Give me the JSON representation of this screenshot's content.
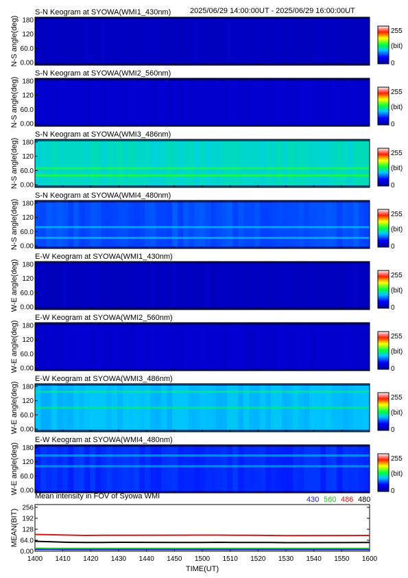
{
  "header": {
    "period": "2025/06/29 14:00:00UT - 2025/06/29 16:00:00UT"
  },
  "colors": {
    "wl_430": "#1a1ad0",
    "wl_560": "#20c020",
    "wl_486": "#d01818",
    "wl_480": "#000000"
  },
  "keograms": [
    {
      "title": "S-N Keogram at SYOWA(WMI1_430nm)",
      "ylabel": "N-S angle(deg)",
      "yticks": [
        "180",
        "120",
        "60.0",
        "0.00"
      ],
      "cbar": {
        "max": "255",
        "unit": "(bit)",
        "min": "0"
      },
      "level": 0.08,
      "variation": 0.03,
      "bands": []
    },
    {
      "title": "S-N Keogram at SYOWA(WMI2_560nm)",
      "ylabel": "N-S angle(deg)",
      "yticks": [
        "180",
        "120",
        "60.0",
        "0.00"
      ],
      "cbar": {
        "max": "255",
        "unit": "(bit)",
        "min": "0"
      },
      "level": 0.1,
      "variation": 0.03,
      "bands": []
    },
    {
      "title": "S-N Keogram at SYOWA(WMI3_486nm)",
      "ylabel": "N-S angle(deg)",
      "yticks": [
        "180",
        "120",
        "60.0",
        "0.00"
      ],
      "cbar": {
        "max": "255",
        "unit": "(bit)",
        "min": "0"
      },
      "level": 0.4,
      "variation": 0.05,
      "bands": [
        72,
        45
      ]
    },
    {
      "title": "S-N Keogram at SYOWA(WMI4_480nm)",
      "ylabel": "N-S angle(deg)",
      "yticks": [
        "180",
        "120",
        "60.0",
        "0.00"
      ],
      "cbar": {
        "max": "255",
        "unit": "(bit)",
        "min": "0"
      },
      "level": 0.25,
      "variation": 0.05,
      "bands": [
        80,
        40
      ]
    },
    {
      "title": "E-W Keogram at SYOWA(WMI1_430nm)",
      "ylabel": "W-E angle(deg)",
      "yticks": [
        "180",
        "120",
        "60.0",
        "0.00"
      ],
      "cbar": {
        "max": "255",
        "unit": "(bit)",
        "min": "0"
      },
      "level": 0.08,
      "variation": 0.03,
      "bands": []
    },
    {
      "title": "E-W Keogram at SYOWA(WMI2_560nm)",
      "ylabel": "W-E angle(deg)",
      "yticks": [
        "180",
        "120",
        "60.0",
        "0.00"
      ],
      "cbar": {
        "max": "255",
        "unit": "(bit)",
        "min": "0"
      },
      "level": 0.1,
      "variation": 0.03,
      "bands": []
    },
    {
      "title": "E-W Keogram at SYOWA(WMI3_486nm)",
      "ylabel": "W-E angle(deg)",
      "yticks": [
        "180",
        "120",
        "60.0",
        "0.00"
      ],
      "cbar": {
        "max": "255",
        "unit": "(bit)",
        "min": "0"
      },
      "level": 0.35,
      "variation": 0.05,
      "bands": [
        90,
        150
      ]
    },
    {
      "title": "E-W Keogram at SYOWA(WMI4_480nm)",
      "ylabel": "W-E angle(deg)",
      "yticks": [
        "180",
        "120",
        "60.0",
        "0.00"
      ],
      "cbar": {
        "max": "255",
        "unit": "(bit)",
        "min": "0"
      },
      "level": 0.22,
      "variation": 0.05,
      "bands": [
        100,
        140
      ]
    }
  ],
  "chart_data": {
    "type": "line",
    "title": "Mean intensity in FOV of Syowa WMI",
    "xlabel": "TIME(UT)",
    "ylabel": "MEAN(BIT)",
    "xlim": [
      1400,
      1600
    ],
    "ylim": [
      0,
      256
    ],
    "xticks": [
      "1400",
      "1410",
      "1420",
      "1430",
      "1440",
      "1450",
      "1500",
      "1510",
      "1520",
      "1530",
      "1540",
      "1550",
      "1600"
    ],
    "yticks": [
      "256",
      "192",
      "128",
      "64.0",
      "0.00"
    ],
    "x": [
      1400,
      1410,
      1420,
      1430,
      1440,
      1450,
      1500,
      1510,
      1520,
      1530,
      1540,
      1550,
      1600
    ],
    "series": [
      {
        "name": "430",
        "color": "#1a1ad0",
        "values": [
          10,
          10,
          9,
          9,
          9,
          9,
          9,
          9,
          9,
          9,
          9,
          9,
          9
        ]
      },
      {
        "name": "560",
        "color": "#20c020",
        "values": [
          17,
          16,
          16,
          16,
          16,
          16,
          16,
          16,
          16,
          16,
          16,
          16,
          16
        ]
      },
      {
        "name": "486",
        "color": "#d01818",
        "values": [
          98,
          96,
          94,
          92,
          93,
          93,
          94,
          94,
          93,
          93,
          92,
          91,
          92
        ]
      },
      {
        "name": "480",
        "color": "#000000",
        "values": [
          58,
          55,
          52,
          51,
          51,
          52,
          51,
          52,
          51,
          51,
          51,
          50,
          51
        ]
      }
    ]
  }
}
